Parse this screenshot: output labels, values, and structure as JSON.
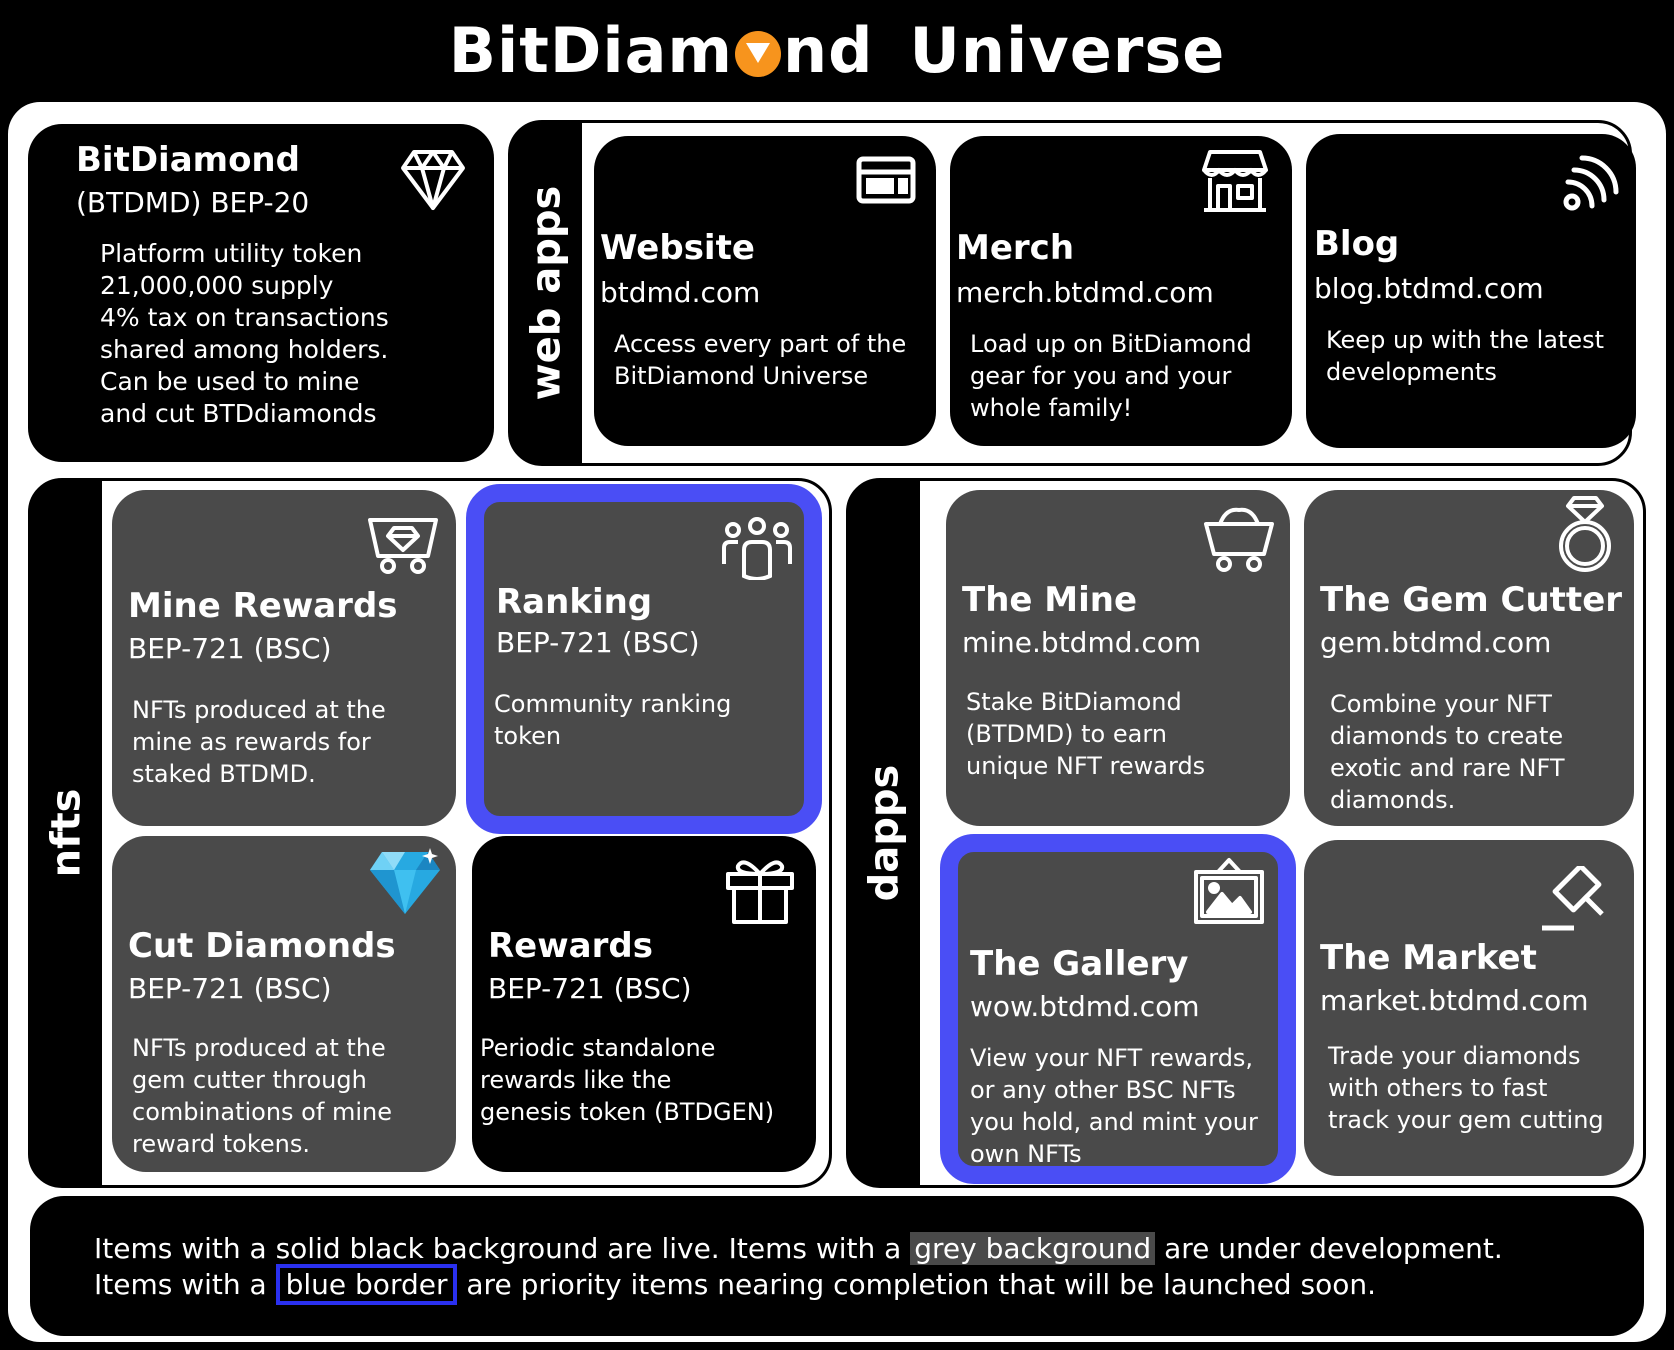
{
  "header": {
    "title_part1": "BitDiam",
    "title_part2": "nd",
    "title_part3": "Universe",
    "logo_icon": "diamond-coin-icon",
    "logo_color": "#f7941d"
  },
  "token": {
    "name": "BitDiamond",
    "ticker": "(BTDMD) BEP-20",
    "icon": "diamond-outline-icon",
    "lines": [
      "Platform utility token",
      "21,000,000 supply",
      "4% tax on transactions",
      "shared among holders.",
      "Can be used to mine",
      "and cut BTDdiamonds"
    ]
  },
  "sections": {
    "web_apps": "web apps",
    "nfts": "nfts",
    "dapps": "dapps"
  },
  "web_apps": [
    {
      "title": "Website",
      "url": "btdmd.com",
      "desc1": "Access every part of the",
      "desc2": "BitDiamond Universe",
      "desc3": "",
      "icon": "browser-window-icon"
    },
    {
      "title": "Merch",
      "url": "merch.btdmd.com",
      "desc1": "Load up on BitDiamond",
      "desc2": "gear for you and your",
      "desc3": "whole family!",
      "icon": "storefront-icon"
    },
    {
      "title": "Blog",
      "url": "blog.btdmd.com",
      "desc1": "Keep up with the latest",
      "desc2": "developments",
      "desc3": "",
      "icon": "rss-feed-icon"
    }
  ],
  "nfts": [
    {
      "title": "Mine Rewards",
      "standard": "BEP-721 (BSC)",
      "desc1": "NFTs produced at the",
      "desc2": "mine as rewards for",
      "desc3": "staked BTDMD.",
      "desc4": "",
      "icon": "mine-cart-diamond-icon",
      "status": "development"
    },
    {
      "title": "Ranking",
      "standard": "BEP-721 (BSC)",
      "desc1": "Community ranking",
      "desc2": "token",
      "desc3": "",
      "desc4": "",
      "icon": "community-group-icon",
      "status": "priority"
    },
    {
      "title": "Cut Diamonds",
      "standard": "BEP-721 (BSC)",
      "desc1": "NFTs produced at the",
      "desc2": "gem cutter through",
      "desc3": "combinations of mine",
      "desc4": "reward tokens.",
      "icon": "blue-diamond-icon",
      "status": "development"
    },
    {
      "title": "Rewards",
      "standard": "BEP-721 (BSC)",
      "desc1": "Periodic standalone",
      "desc2": "rewards like the",
      "desc3": "genesis token (BTDGEN)",
      "desc4": "",
      "icon": "gift-icon",
      "status": "live"
    }
  ],
  "dapps": [
    {
      "title": "The Mine",
      "url": "mine.btdmd.com",
      "desc1": "Stake BitDiamond",
      "desc2": "(BTDMD) to earn",
      "desc3": "unique NFT rewards",
      "desc4": "",
      "icon": "mine-cart-icon",
      "status": "development"
    },
    {
      "title": "The Gem Cutter",
      "url": "gem.btdmd.com",
      "desc1": "Combine your NFT",
      "desc2": "diamonds to create",
      "desc3": "exotic and rare NFT",
      "desc4": "diamonds.",
      "icon": "diamond-ring-icon",
      "status": "development"
    },
    {
      "title": "The Gallery",
      "url": "wow.btdmd.com",
      "desc1": "View your NFT rewards,",
      "desc2": "or any other BSC NFTs",
      "desc3": "you hold, and mint your",
      "desc4": "own NFTs",
      "icon": "picture-frame-icon",
      "status": "priority"
    },
    {
      "title": "The Market",
      "url": "market.btdmd.com",
      "desc1": "Trade your diamonds",
      "desc2": "with others to fast",
      "desc3": "track your gem cutting",
      "desc4": "",
      "icon": "auction-gavel-icon",
      "status": "development"
    }
  ],
  "legend": {
    "line1_a": "Items with a solid black background are live. Items with a",
    "line1_hl": "grey background",
    "line1_b": "are under development.",
    "line2_a": "Items with a",
    "line2_hl": "blue border",
    "line2_b": "are priority items nearing completion that will be launched soon."
  },
  "colors": {
    "live": "#000000",
    "development": "#4a4a4a",
    "priority_border": "#4a4ef5"
  }
}
